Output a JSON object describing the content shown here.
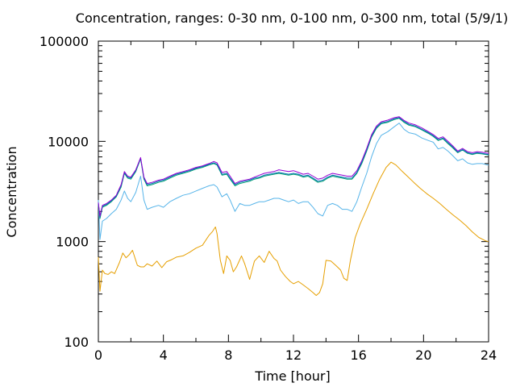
{
  "chart_data": {
    "type": "line",
    "title": "Concentration, ranges: 0-30 nm, 0-100 nm, 0-300 nm, total (5/9/1)",
    "xlabel": "Time [hour]",
    "ylabel": "Concentration",
    "xlim": [
      0,
      24
    ],
    "ylim": [
      100,
      100000
    ],
    "yscale": "log",
    "grid": false,
    "legend": "none",
    "xticks": [
      0,
      4,
      8,
      12,
      16,
      20,
      24
    ],
    "xtick_labels": [
      "0",
      "4",
      "8",
      "12",
      "16",
      "20",
      "24"
    ],
    "yticks": [
      100,
      1000,
      10000,
      100000
    ],
    "ytick_labels": [
      "100",
      "1000",
      "10000",
      "100000"
    ],
    "series": [
      {
        "color": "#e69f00",
        "x": [
          0,
          0.1,
          0.25,
          0.4,
          0.6,
          0.8,
          1.0,
          1.3,
          1.5,
          1.7,
          1.9,
          2.1,
          2.4,
          2.6,
          2.8,
          3.0,
          3.3,
          3.6,
          3.9,
          4.2,
          4.5,
          4.8,
          5.2,
          5.6,
          6.0,
          6.4,
          6.8,
          7.0,
          7.2,
          7.3,
          7.5,
          7.7,
          7.9,
          8.1,
          8.3,
          8.5,
          8.8,
          9.0,
          9.3,
          9.6,
          9.9,
          10.2,
          10.5,
          10.8,
          11.0,
          11.2,
          11.5,
          11.8,
          12.0,
          12.3,
          12.6,
          12.9,
          13.2,
          13.4,
          13.6,
          13.8,
          14.0,
          14.3,
          14.6,
          14.9,
          15.1,
          15.3,
          15.5,
          15.8,
          16.1,
          16.5,
          16.9,
          17.3,
          17.7,
          18.0,
          18.3,
          18.7,
          19.0,
          19.4,
          19.8,
          20.2,
          20.6,
          21.0,
          21.4,
          21.8,
          22.2,
          22.6,
          23.0,
          23.4,
          23.8,
          24.0
        ],
        "values": [
          700,
          320,
          520,
          480,
          470,
          500,
          480,
          620,
          770,
          690,
          740,
          820,
          580,
          560,
          560,
          600,
          570,
          640,
          550,
          630,
          660,
          700,
          720,
          780,
          860,
          920,
          1150,
          1250,
          1400,
          1200,
          650,
          480,
          720,
          650,
          500,
          560,
          720,
          600,
          420,
          640,
          720,
          620,
          800,
          680,
          640,
          520,
          450,
          400,
          380,
          400,
          370,
          340,
          310,
          290,
          310,
          380,
          650,
          640,
          580,
          520,
          430,
          410,
          650,
          1100,
          1500,
          2100,
          3000,
          4200,
          5500,
          6200,
          5800,
          5000,
          4500,
          3900,
          3400,
          3000,
          2700,
          2400,
          2100,
          1850,
          1650,
          1450,
          1250,
          1100,
          1020,
          1000
        ]
      },
      {
        "color": "#56b4e9",
        "x": [
          0,
          0.1,
          0.25,
          0.5,
          0.8,
          1.1,
          1.4,
          1.6,
          1.8,
          2.0,
          2.3,
          2.6,
          2.8,
          3.0,
          3.3,
          3.7,
          4.0,
          4.4,
          4.8,
          5.2,
          5.6,
          6.0,
          6.4,
          6.8,
          7.1,
          7.3,
          7.6,
          7.9,
          8.1,
          8.4,
          8.7,
          9.0,
          9.3,
          9.6,
          9.9,
          10.2,
          10.5,
          10.8,
          11.1,
          11.4,
          11.7,
          12.0,
          12.3,
          12.6,
          12.9,
          13.2,
          13.5,
          13.8,
          14.1,
          14.4,
          14.7,
          15.0,
          15.3,
          15.6,
          15.9,
          16.2,
          16.5,
          16.8,
          17.1,
          17.4,
          17.8,
          18.2,
          18.5,
          18.8,
          19.1,
          19.5,
          19.9,
          20.3,
          20.6,
          20.9,
          21.2,
          21.5,
          21.8,
          22.1,
          22.4,
          22.7,
          23.0,
          23.3,
          23.6,
          24.0
        ],
        "values": [
          2600,
          1050,
          1600,
          1700,
          1900,
          2100,
          2600,
          3200,
          2700,
          2500,
          3100,
          4500,
          2600,
          2100,
          2200,
          2300,
          2200,
          2500,
          2700,
          2900,
          3000,
          3200,
          3400,
          3600,
          3700,
          3500,
          2800,
          3000,
          2600,
          2000,
          2400,
          2300,
          2300,
          2400,
          2500,
          2500,
          2600,
          2700,
          2700,
          2600,
          2500,
          2600,
          2400,
          2500,
          2500,
          2200,
          1900,
          1800,
          2300,
          2400,
          2300,
          2100,
          2100,
          2000,
          2500,
          3500,
          4800,
          7000,
          9500,
          11500,
          12500,
          14000,
          15200,
          13200,
          12200,
          11800,
          10800,
          10200,
          9800,
          8400,
          8700,
          8000,
          7200,
          6400,
          6700,
          6100,
          5900,
          6000,
          6000,
          5800
        ]
      },
      {
        "color": "#009e73",
        "x": [
          0,
          0.1,
          0.25,
          0.5,
          0.8,
          1.1,
          1.4,
          1.6,
          1.8,
          2.0,
          2.3,
          2.6,
          2.8,
          3.0,
          3.3,
          3.7,
          4.0,
          4.4,
          4.8,
          5.2,
          5.6,
          6.0,
          6.4,
          6.8,
          7.1,
          7.3,
          7.6,
          7.9,
          8.1,
          8.4,
          8.7,
          9.0,
          9.3,
          9.6,
          9.9,
          10.2,
          10.5,
          10.8,
          11.1,
          11.4,
          11.7,
          12.0,
          12.3,
          12.6,
          12.9,
          13.2,
          13.5,
          13.8,
          14.1,
          14.4,
          14.7,
          15.0,
          15.3,
          15.6,
          15.9,
          16.2,
          16.5,
          16.8,
          17.1,
          17.4,
          17.8,
          18.2,
          18.5,
          18.8,
          19.1,
          19.5,
          19.9,
          20.3,
          20.6,
          20.9,
          21.2,
          21.5,
          21.8,
          22.1,
          22.4,
          22.7,
          23.0,
          23.3,
          23.6,
          24.0
        ],
        "values": [
          2400,
          1700,
          2200,
          2300,
          2500,
          2800,
          3500,
          4800,
          4300,
          4200,
          5000,
          6700,
          4200,
          3600,
          3700,
          3900,
          4000,
          4300,
          4600,
          4800,
          5000,
          5300,
          5500,
          5800,
          6000,
          5800,
          4600,
          4700,
          4200,
          3600,
          3800,
          3900,
          4000,
          4200,
          4300,
          4500,
          4600,
          4700,
          4800,
          4700,
          4600,
          4700,
          4600,
          4400,
          4500,
          4200,
          3900,
          4000,
          4300,
          4500,
          4400,
          4300,
          4200,
          4200,
          4800,
          6000,
          8000,
          11000,
          13500,
          15000,
          15500,
          16500,
          17000,
          15500,
          14500,
          14000,
          13000,
          12000,
          11200,
          10200,
          10600,
          9500,
          8600,
          7700,
          8200,
          7600,
          7400,
          7600,
          7500,
          7300
        ]
      },
      {
        "color": "#0072b2",
        "x": [
          0,
          0.1,
          0.25,
          0.5,
          0.8,
          1.1,
          1.4,
          1.6,
          1.8,
          2.0,
          2.3,
          2.6,
          2.8,
          3.0,
          3.3,
          3.7,
          4.0,
          4.4,
          4.8,
          5.2,
          5.6,
          6.0,
          6.4,
          6.8,
          7.1,
          7.3,
          7.6,
          7.9,
          8.1,
          8.4,
          8.7,
          9.0,
          9.3,
          9.6,
          9.9,
          10.2,
          10.5,
          10.8,
          11.1,
          11.4,
          11.7,
          12.0,
          12.3,
          12.6,
          12.9,
          13.2,
          13.5,
          13.8,
          14.1,
          14.4,
          14.7,
          15.0,
          15.3,
          15.6,
          15.9,
          16.2,
          16.5,
          16.8,
          17.1,
          17.4,
          17.8,
          18.2,
          18.5,
          18.8,
          19.1,
          19.5,
          19.9,
          20.3,
          20.6,
          20.9,
          21.2,
          21.5,
          21.8,
          22.1,
          22.4,
          22.7,
          23.0,
          23.3,
          23.6,
          24.0
        ],
        "values": [
          2400,
          1750,
          2250,
          2350,
          2550,
          2850,
          3600,
          4900,
          4400,
          4300,
          5100,
          6800,
          4300,
          3700,
          3800,
          4000,
          4100,
          4400,
          4700,
          4900,
          5100,
          5400,
          5600,
          5900,
          6100,
          5900,
          4700,
          4800,
          4300,
          3700,
          3900,
          4000,
          4100,
          4300,
          4400,
          4600,
          4700,
          4800,
          4900,
          4800,
          4700,
          4800,
          4700,
          4500,
          4600,
          4300,
          4000,
          4100,
          4400,
          4600,
          4500,
          4400,
          4300,
          4300,
          4900,
          6200,
          8200,
          11300,
          13800,
          15300,
          15800,
          16800,
          17200,
          15800,
          14800,
          14200,
          13200,
          12200,
          11400,
          10400,
          10800,
          9700,
          8800,
          7800,
          8300,
          7700,
          7500,
          7700,
          7600,
          7400
        ]
      },
      {
        "color": "#9400d3",
        "x": [
          0,
          0.1,
          0.25,
          0.5,
          0.8,
          1.1,
          1.4,
          1.6,
          1.8,
          2.0,
          2.3,
          2.6,
          2.8,
          3.0,
          3.3,
          3.7,
          4.0,
          4.4,
          4.8,
          5.2,
          5.6,
          6.0,
          6.4,
          6.8,
          7.1,
          7.3,
          7.6,
          7.9,
          8.1,
          8.4,
          8.7,
          9.0,
          9.3,
          9.6,
          9.9,
          10.2,
          10.5,
          10.8,
          11.1,
          11.4,
          11.7,
          12.0,
          12.3,
          12.6,
          12.9,
          13.2,
          13.5,
          13.8,
          14.1,
          14.4,
          14.7,
          15.0,
          15.3,
          15.6,
          15.9,
          16.2,
          16.5,
          16.8,
          17.1,
          17.4,
          17.8,
          18.2,
          18.5,
          18.8,
          19.1,
          19.5,
          19.9,
          20.3,
          20.6,
          20.9,
          21.2,
          21.5,
          21.8,
          22.1,
          22.4,
          22.7,
          23.0,
          23.3,
          23.6,
          24.0
        ],
        "values": [
          2450,
          1800,
          2300,
          2400,
          2600,
          2900,
          3700,
          5000,
          4500,
          4400,
          5200,
          6900,
          4400,
          3800,
          3900,
          4100,
          4200,
          4500,
          4800,
          5000,
          5200,
          5500,
          5700,
          6000,
          6300,
          6100,
          4900,
          5000,
          4500,
          3800,
          4000,
          4100,
          4200,
          4400,
          4600,
          4800,
          4900,
          5000,
          5200,
          5100,
          5000,
          5100,
          4900,
          4700,
          4800,
          4500,
          4200,
          4300,
          4600,
          4800,
          4700,
          4600,
          4500,
          4500,
          5100,
          6400,
          8500,
          11600,
          14200,
          15700,
          16300,
          17200,
          17600,
          16200,
          15200,
          14600,
          13600,
          12500,
          11700,
          10700,
          11100,
          10000,
          9000,
          8000,
          8500,
          7900,
          7700,
          7900,
          7800,
          7600
        ]
      }
    ]
  }
}
